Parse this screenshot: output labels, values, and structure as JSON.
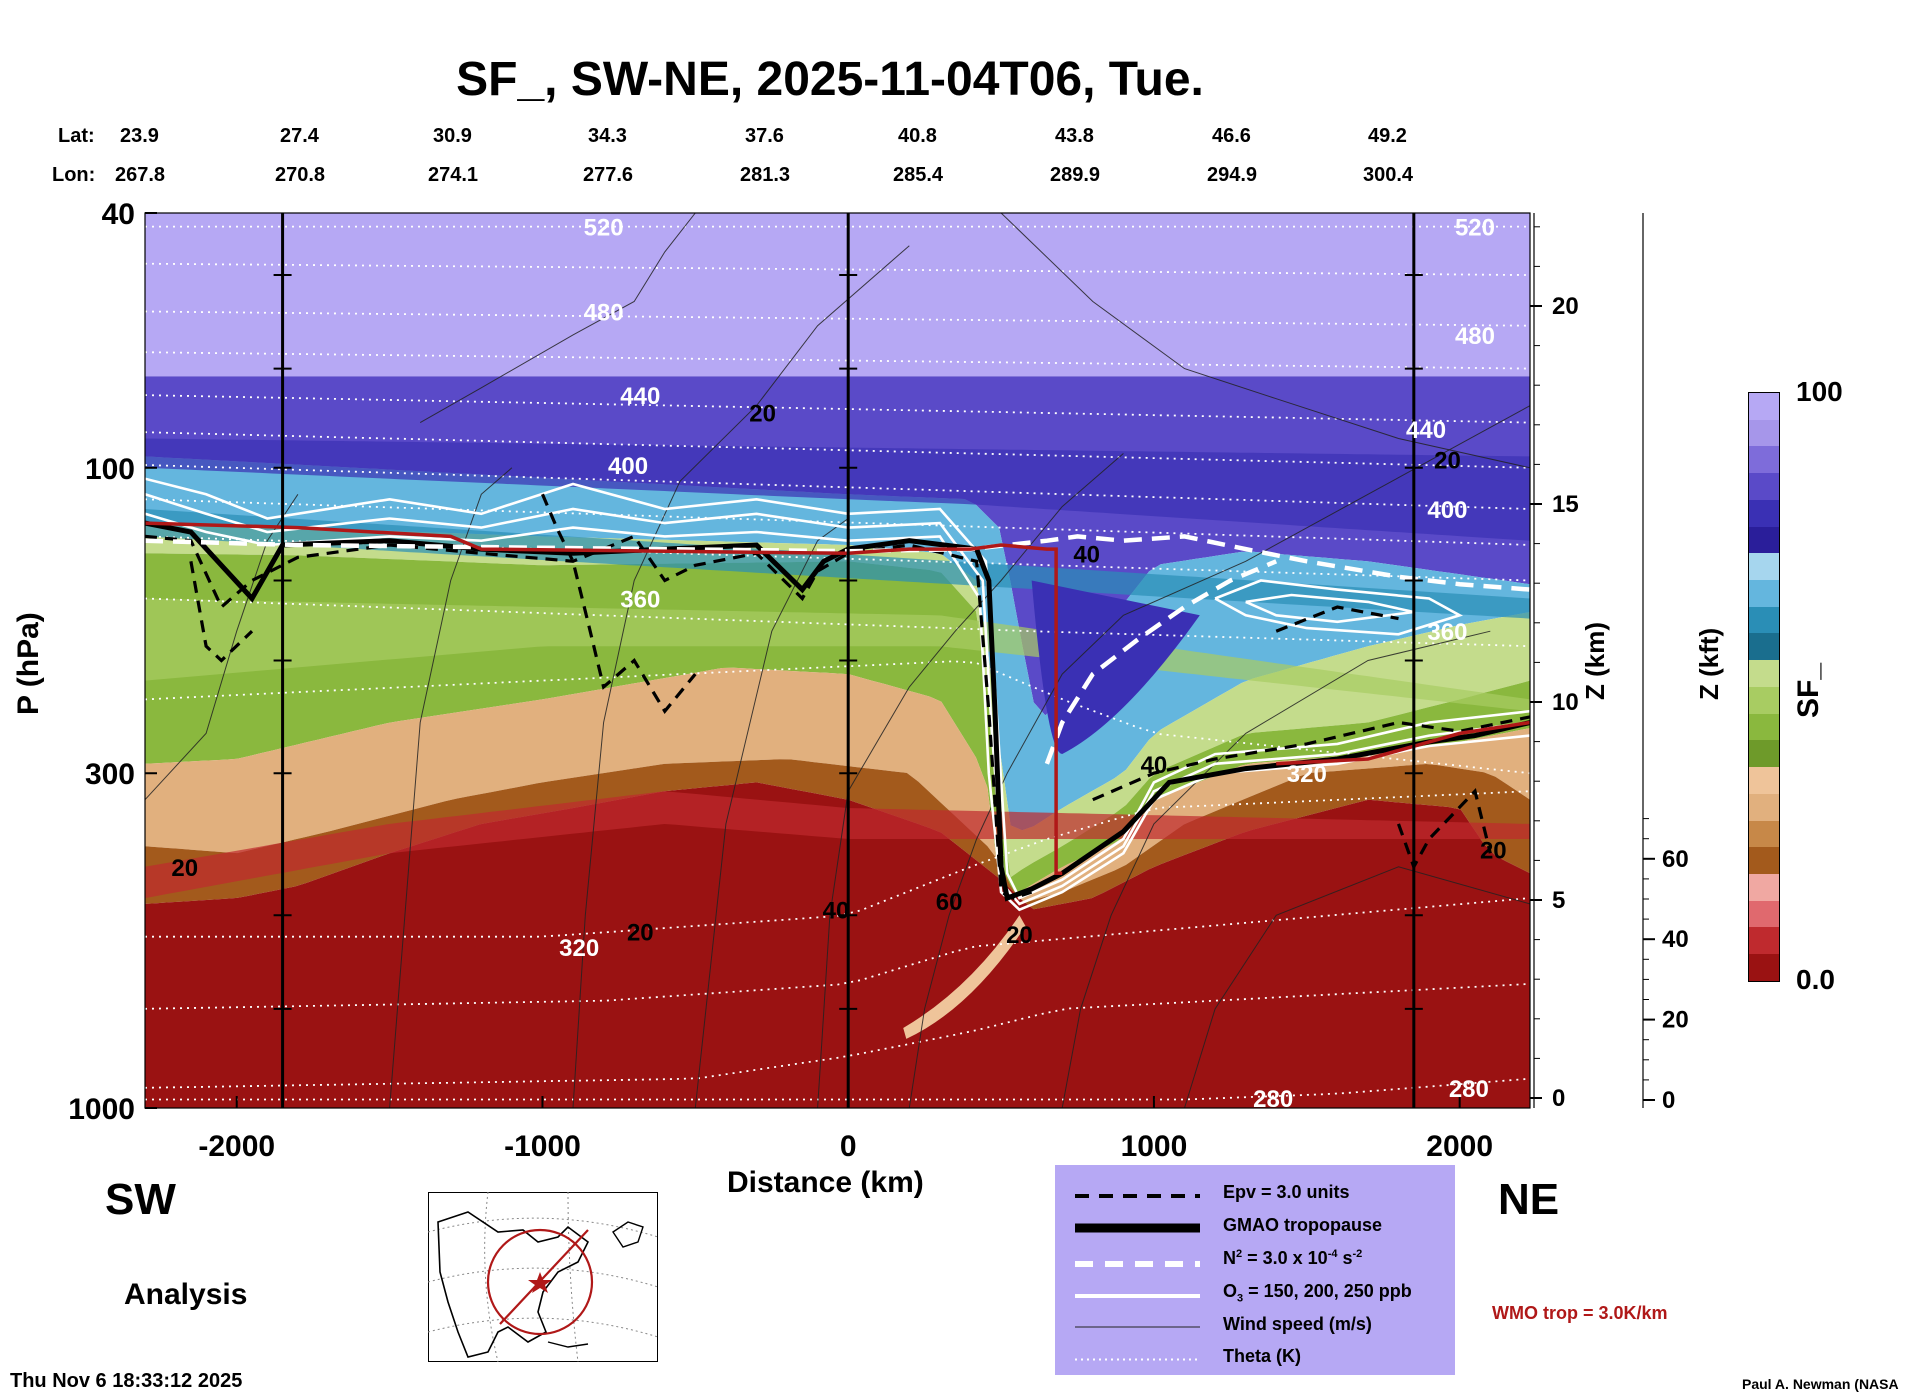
{
  "title": "SF_, SW-NE, 2025-11-04T06, Tue.",
  "coords": {
    "lat_label": "Lat:",
    "lon_label": "Lon:",
    "lat": [
      "23.9",
      "27.4",
      "30.9",
      "34.3",
      "37.6",
      "40.8",
      "43.8",
      "46.6",
      "49.2"
    ],
    "lon": [
      "267.8",
      "270.8",
      "274.1",
      "277.6",
      "281.3",
      "285.4",
      "289.9",
      "294.9",
      "300.4"
    ]
  },
  "chart_data": {
    "type": "heatmap",
    "title": "SF_, SW-NE, 2025-11-04T06, Tue.",
    "xlabel": "Distance (km)",
    "ylabel": "P (hPa)",
    "y2label": "Z (km)",
    "y3label": "Z (kft)",
    "colorbar_label": "SF_",
    "xlim": [
      -2300,
      2230
    ],
    "ylim": [
      1000,
      40
    ],
    "y_scale": "log",
    "x_ticks": [
      "-2000",
      "-1000",
      "0",
      "1000",
      "2000"
    ],
    "x_tick_values": [
      -2000,
      -1000,
      0,
      1000,
      2000
    ],
    "y_ticks": [
      "40",
      "100",
      "300",
      "1000"
    ],
    "y_tick_values": [
      40,
      100,
      300,
      1000
    ],
    "zkm_ticks": [
      "0",
      "5",
      "10",
      "15",
      "20"
    ],
    "zkm_tick_values": [
      0,
      5,
      10,
      15,
      20
    ],
    "zkft_ticks": [
      "0",
      "20",
      "40",
      "60"
    ],
    "zkft_tick_values": [
      0,
      20,
      40,
      60
    ],
    "colorbar_range": [
      "0.0",
      "100"
    ],
    "colors": [
      "#9a1212",
      "#bf2a2e",
      "#e0696e",
      "#f0a8a2",
      "#a35a1c",
      "#c78848",
      "#e1b07e",
      "#efc49a",
      "#6e9a2a",
      "#8ab83e",
      "#a8cc62",
      "#c4dc8c",
      "#1a6e8e",
      "#2a8eb6",
      "#64b6de",
      "#a6d6ee",
      "#2a1e9a",
      "#3a30b4",
      "#5a4ac8",
      "#7e6cda",
      "#a696ea",
      "#b6a8f4"
    ],
    "theta_labels": [
      {
        "text": "520",
        "x": -800,
        "p": 42
      },
      {
        "text": "480",
        "x": -800,
        "p": 57
      },
      {
        "text": "440",
        "x": -680,
        "p": 77
      },
      {
        "text": "400",
        "x": -720,
        "p": 99
      },
      {
        "text": "360",
        "x": -680,
        "p": 160
      },
      {
        "text": "320",
        "x": -880,
        "p": 560
      },
      {
        "text": "280",
        "x": 1390,
        "p": 965
      },
      {
        "text": "520",
        "x": 2050,
        "p": 42
      },
      {
        "text": "480",
        "x": 2050,
        "p": 62
      },
      {
        "text": "440",
        "x": 1890,
        "p": 87
      },
      {
        "text": "400",
        "x": 1960,
        "p": 116
      },
      {
        "text": "360",
        "x": 1960,
        "p": 180
      },
      {
        "text": "320",
        "x": 1500,
        "p": 300
      },
      {
        "text": "280",
        "x": 2030,
        "p": 930
      }
    ],
    "wind_labels": [
      {
        "text": "20",
        "x": -280,
        "p": 82
      },
      {
        "text": "20",
        "x": 1960,
        "p": 97
      },
      {
        "text": "40",
        "x": 780,
        "p": 136
      },
      {
        "text": "40",
        "x": 1000,
        "p": 290
      },
      {
        "text": "20",
        "x": -2170,
        "p": 420
      },
      {
        "text": "20",
        "x": -680,
        "p": 530
      },
      {
        "text": "40",
        "x": -40,
        "p": 490
      },
      {
        "text": "60",
        "x": 330,
        "p": 475
      },
      {
        "text": "20",
        "x": 560,
        "p": 535
      },
      {
        "text": "20",
        "x": 2110,
        "p": 395
      }
    ]
  },
  "labels": {
    "sw": "SW",
    "ne": "NE",
    "analysis": "Analysis",
    "timestamp": "Thu Nov  6 18:33:12 2025",
    "credit": "Paul A. Newman (NASA",
    "wmo": "WMO trop = 3.0K/km"
  },
  "legend": {
    "epv": "Epv = 3.0 units",
    "tropopause": "GMAO tropopause",
    "n2_main": "N",
    "n2_sup": "2",
    "n2_rest": " = 3.0 x 10",
    "n2_exp": "-4",
    "n2_unit": " s",
    "n2_unit_exp": "-2",
    "o3_main": "O",
    "o3_sub": "3",
    "o3_rest": " = 150, 200, 250 ppb",
    "wind": "Wind speed (m/s)",
    "theta": "Theta (K)"
  }
}
